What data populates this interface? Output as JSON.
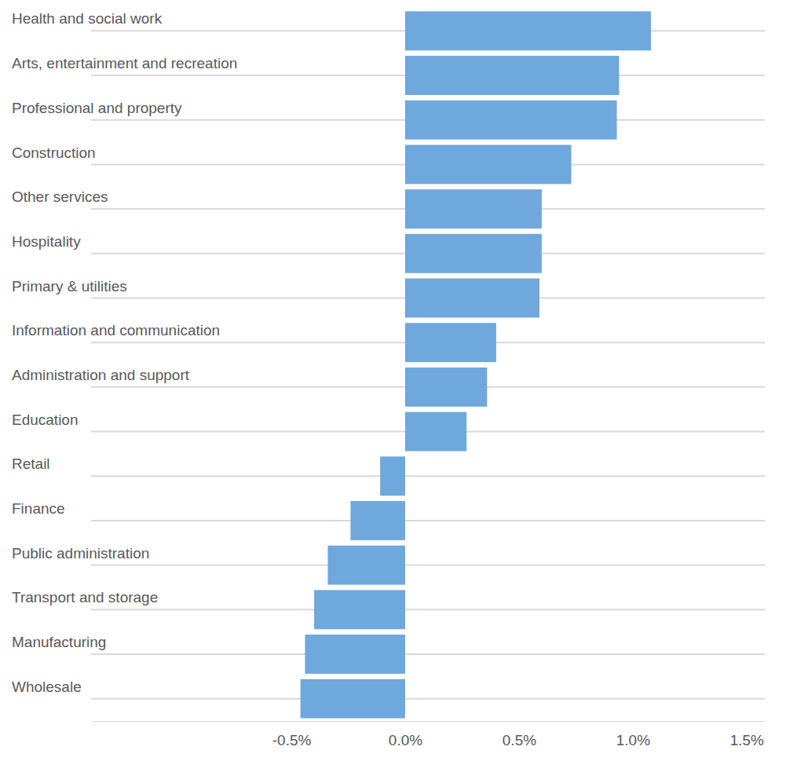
{
  "chart_data": {
    "type": "bar",
    "orientation": "horizontal",
    "grid": true,
    "color": "#6fa8dc",
    "categories": [
      "Health and social work",
      "Arts, entertainment and recreation",
      "Professional and property",
      "Construction",
      "Other services",
      "Hospitality",
      "Primary & utilities",
      "Information and communication",
      "Administration and support",
      "Education",
      "Retail",
      "Finance",
      "Public administration",
      "Transport and storage",
      "Manufacturing",
      "Wholesale"
    ],
    "values": [
      1.08,
      0.94,
      0.93,
      0.73,
      0.6,
      0.6,
      0.59,
      0.4,
      0.36,
      0.27,
      -0.11,
      -0.24,
      -0.34,
      -0.4,
      -0.44,
      -0.46
    ],
    "xlim": [
      -1.38,
      1.58
    ],
    "xticks": [
      {
        "value": -0.5,
        "label": "-0.5%"
      },
      {
        "value": 0,
        "label": "0.0%"
      },
      {
        "value": 0.5,
        "label": "0.5%"
      },
      {
        "value": 1,
        "label": "1.0%"
      },
      {
        "value": 1.5,
        "label": "1.5%"
      }
    ]
  }
}
